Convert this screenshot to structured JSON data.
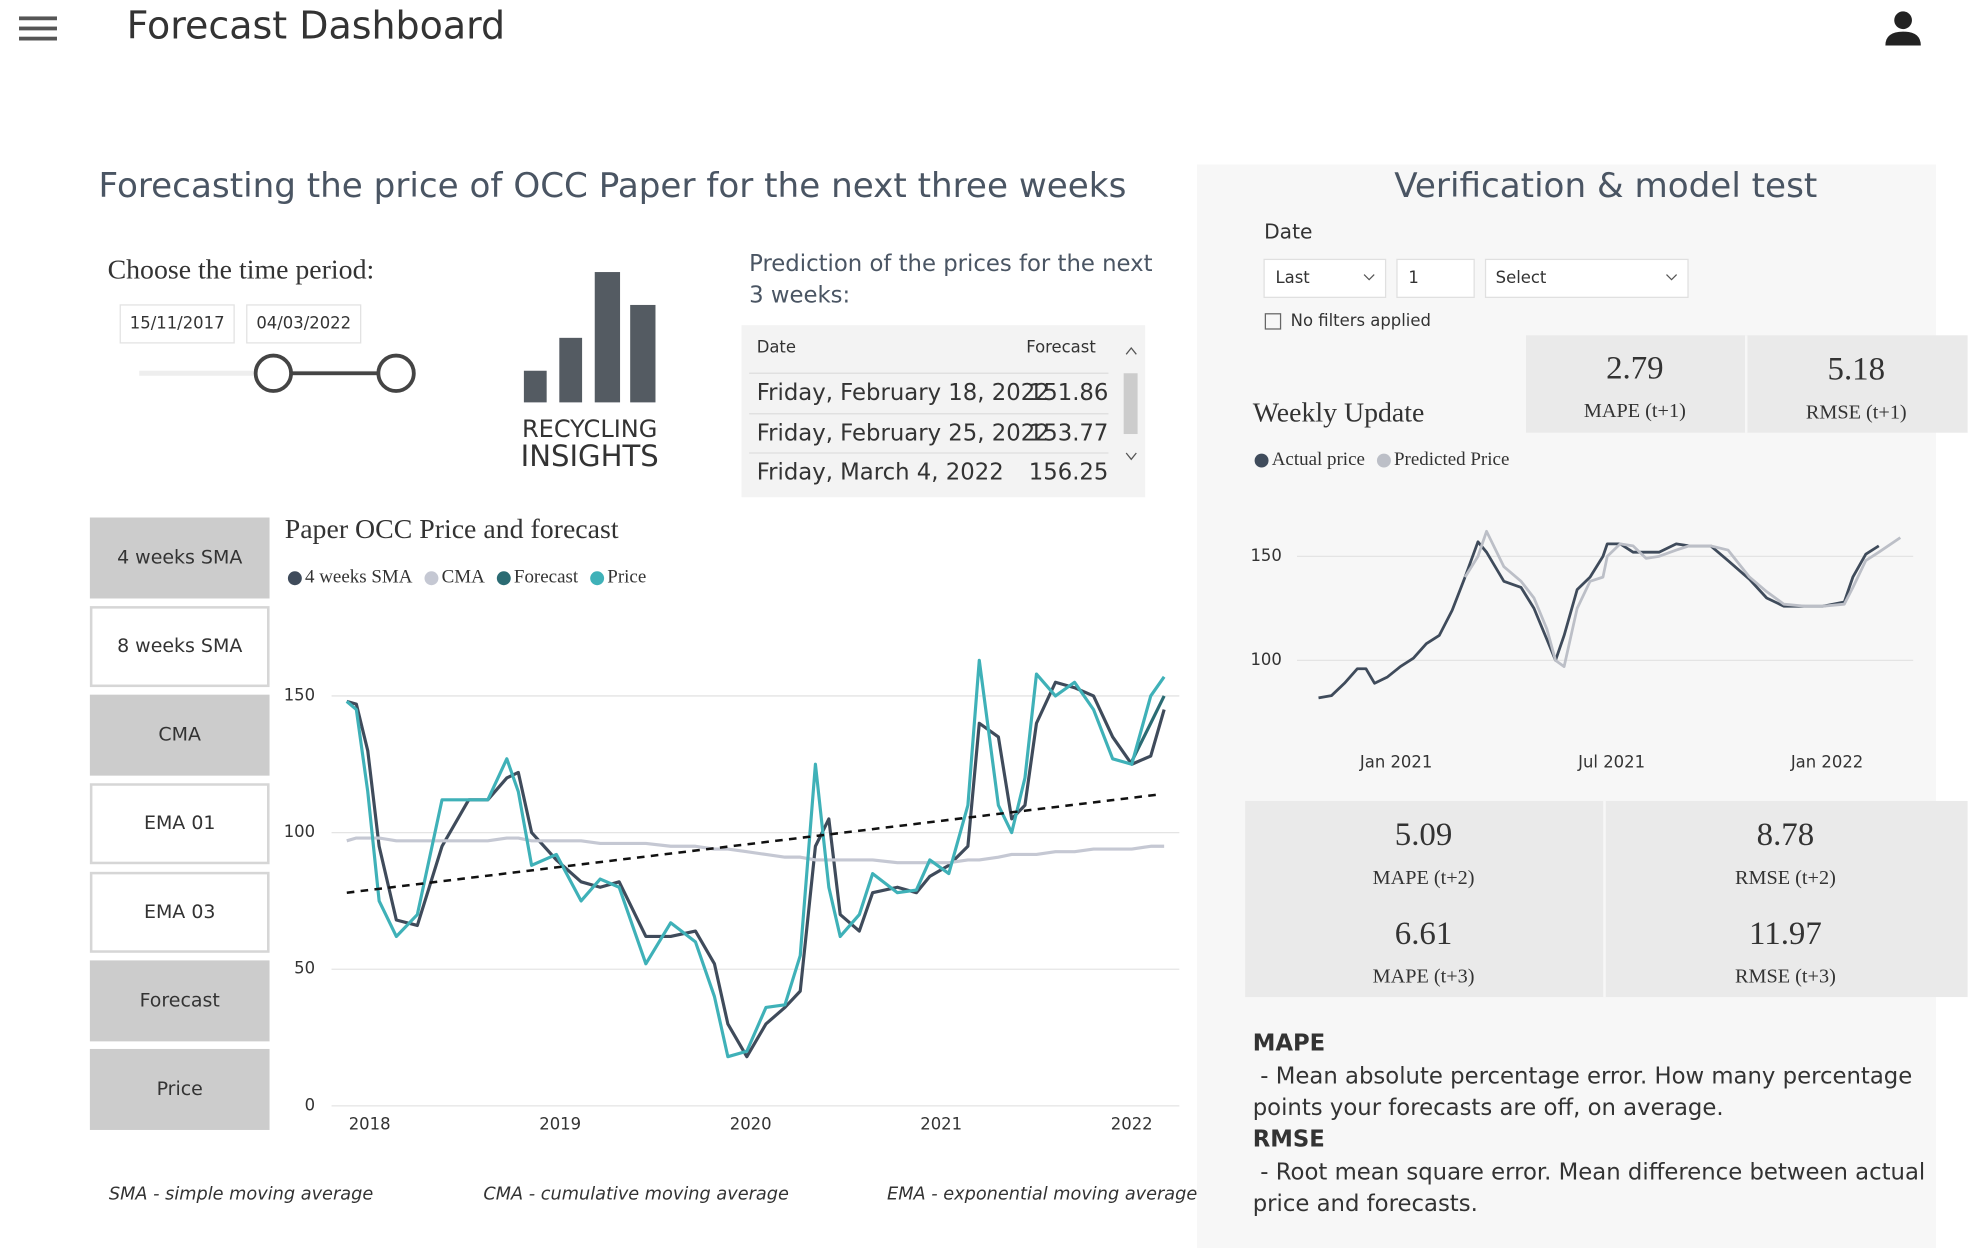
{
  "header": {
    "title": "Forecast Dashboard"
  },
  "forecast_panel": {
    "title": "Forecasting the price of OCC Paper for the next three weeks",
    "time_period": {
      "label": "Choose the time period:",
      "start": "15/11/2017",
      "end": "04/03/2022"
    },
    "logo": {
      "line1": "RECYCLING",
      "line2": "INSIGHTS"
    },
    "prediction": {
      "title_lines": [
        "Prediction of the prices for the next",
        "3 weeks:"
      ],
      "table": {
        "columns": [
          "Date",
          "Forecast"
        ],
        "rows": [
          [
            "Friday, February 18, 2022",
            151.86
          ],
          [
            "Friday, February 25, 2022",
            153.77
          ],
          [
            "Friday, March 4, 2022",
            156.25
          ]
        ]
      }
    },
    "buttons": [
      "4 weeks SMA",
      "8 weeks SMA",
      "CMA",
      "EMA 01",
      "EMA 03",
      "Forecast",
      "Price"
    ],
    "footnotes": [
      "SMA - simple moving average",
      "CMA - cumulative moving average",
      "EMA - exponential moving average"
    ]
  },
  "verification": {
    "title": "Verification & model test",
    "date_filter": {
      "label": "Date",
      "period": "Last",
      "count": 1,
      "unit": "Select",
      "note": "No filters applied"
    },
    "metrics": [
      {
        "value": 2.79,
        "label": "MAPE (t+1)"
      },
      {
        "value": 5.18,
        "label": "RMSE (t+1)"
      },
      {
        "value": 5.09,
        "label": "MAPE (t+2)"
      },
      {
        "value": 8.78,
        "label": "RMSE (t+2)"
      },
      {
        "value": 6.61,
        "label": "MAPE (t+3)"
      },
      {
        "value": 11.97,
        "label": "RMSE (t+3)"
      }
    ],
    "definitions": [
      {
        "term": "MAPE",
        "lines": [
          "- Mean absolute percentage error. How many percentage",
          "points your forecasts are off, on average."
        ]
      },
      {
        "term": "RMSE",
        "lines": [
          "- Root mean square error. Mean difference between actual",
          "price and forecasts."
        ]
      }
    ]
  },
  "chart_data": [
    {
      "type": "line",
      "title": "Paper OCC Price and forecast",
      "x": [
        2017.88,
        2017.93,
        2017.99,
        2018.05,
        2018.14,
        2018.25,
        2018.38,
        2018.52,
        2018.62,
        2018.72,
        2018.78,
        2018.85,
        2018.98,
        2019.11,
        2019.21,
        2019.31,
        2019.45,
        2019.58,
        2019.71,
        2019.81,
        2019.88,
        2019.98,
        2020.08,
        2020.18,
        2020.26,
        2020.34,
        2020.41,
        2020.47,
        2020.57,
        2020.64,
        2020.77,
        2020.87,
        2020.94,
        2021.04,
        2021.14,
        2021.2,
        2021.3,
        2021.37,
        2021.44,
        2021.5,
        2021.6,
        2021.7,
        2021.8,
        2021.9,
        2022.0,
        2022.1,
        2022.17
      ],
      "series": [
        {
          "name": "4 weeks SMA",
          "color": "#3f4b5b",
          "values": [
            148,
            147,
            130,
            95,
            68,
            66,
            95,
            112,
            112,
            120,
            122,
            100,
            90,
            82,
            80,
            82,
            62,
            62,
            64,
            52,
            30,
            18,
            30,
            36,
            42,
            95,
            105,
            70,
            64,
            78,
            80,
            78,
            84,
            88,
            95,
            140,
            135,
            105,
            110,
            140,
            155,
            153,
            150,
            135,
            125,
            128,
            145
          ]
        },
        {
          "name": "CMA",
          "color": "#c5c8d3",
          "values": [
            97,
            98,
            98,
            98,
            97,
            97,
            97,
            97,
            97,
            98,
            98,
            97,
            97,
            97,
            96,
            96,
            96,
            95,
            95,
            94,
            94,
            93,
            92,
            91,
            91,
            90,
            90,
            90,
            90,
            90,
            89,
            89,
            89,
            89,
            90,
            90,
            91,
            92,
            92,
            92,
            93,
            93,
            94,
            94,
            94,
            95,
            95
          ]
        },
        {
          "name": "Forecast",
          "color": "#2b6b73",
          "values": [
            null,
            null,
            null,
            null,
            null,
            null,
            null,
            null,
            null,
            null,
            null,
            null,
            null,
            null,
            null,
            null,
            null,
            null,
            null,
            null,
            null,
            null,
            null,
            null,
            null,
            null,
            null,
            null,
            null,
            null,
            null,
            null,
            null,
            null,
            null,
            null,
            null,
            null,
            null,
            null,
            null,
            null,
            null,
            null,
            126,
            140,
            150
          ]
        },
        {
          "name": "Price",
          "color": "#3fb1b8",
          "values": [
            148,
            145,
            115,
            75,
            62,
            70,
            112,
            112,
            112,
            127,
            115,
            88,
            92,
            75,
            83,
            80,
            52,
            67,
            60,
            40,
            18,
            20,
            36,
            37,
            55,
            125,
            80,
            62,
            70,
            85,
            78,
            79,
            90,
            85,
            110,
            163,
            110,
            100,
            120,
            158,
            150,
            155,
            145,
            127,
            125,
            150,
            157
          ]
        }
      ],
      "trendline": {
        "x": [
          2017.88,
          2022.15
        ],
        "values": [
          78,
          114
        ],
        "color": "#111111",
        "style": "dashed"
      },
      "xlim": [
        2017.8,
        2022.25
      ],
      "xticks": [
        2018,
        2019,
        2020,
        2021,
        2022
      ],
      "ylim": [
        0,
        165
      ],
      "yticks": [
        0,
        50,
        100,
        150
      ],
      "grid": true
    },
    {
      "type": "line",
      "title": "Weekly Update",
      "x": [
        2020.82,
        2020.85,
        2020.88,
        2020.91,
        2020.93,
        2020.95,
        2020.98,
        2021.01,
        2021.04,
        2021.07,
        2021.1,
        2021.13,
        2021.16,
        2021.19,
        2021.21,
        2021.25,
        2021.29,
        2021.32,
        2021.35,
        2021.37,
        2021.39,
        2021.42,
        2021.45,
        2021.48,
        2021.49,
        2021.52,
        2021.55,
        2021.58,
        2021.61,
        2021.65,
        2021.68,
        2021.73,
        2021.77,
        2021.82,
        2021.86,
        2021.9,
        2021.95,
        2021.99,
        2022.04,
        2022.06,
        2022.09,
        2022.12,
        2022.17
      ],
      "series": [
        {
          "name": "Actual price",
          "color": "#3f4b5b",
          "values": [
            82,
            83,
            89,
            96,
            96,
            89,
            92,
            97,
            101,
            108,
            112,
            124,
            140,
            157,
            152,
            138,
            135,
            125,
            110,
            100,
            112,
            134,
            140,
            150,
            156,
            156,
            152,
            152,
            152,
            156,
            155,
            155,
            148,
            139,
            130,
            126,
            126,
            126,
            128,
            140,
            151,
            155,
            null
          ]
        },
        {
          "name": "Predicted Price",
          "color": "#bcbfc7",
          "values": [
            null,
            null,
            null,
            null,
            null,
            null,
            null,
            null,
            null,
            null,
            null,
            null,
            140,
            150,
            162,
            145,
            138,
            130,
            115,
            100,
            97,
            125,
            138,
            140,
            150,
            156,
            155,
            149,
            150,
            153,
            155,
            155,
            153,
            140,
            133,
            127,
            126,
            126,
            127,
            135,
            148,
            152,
            159
          ]
        }
      ],
      "xlim": [
        2020.77,
        2022.2
      ],
      "xticks": [
        {
          "value": 2021,
          "label": "Jan 2021"
        },
        {
          "value": 2021.5,
          "label": "Jul 2021"
        },
        {
          "value": 2022,
          "label": "Jan 2022"
        }
      ],
      "ylim": [
        75,
        165
      ],
      "yticks": [
        100,
        150
      ],
      "grid": true
    }
  ]
}
